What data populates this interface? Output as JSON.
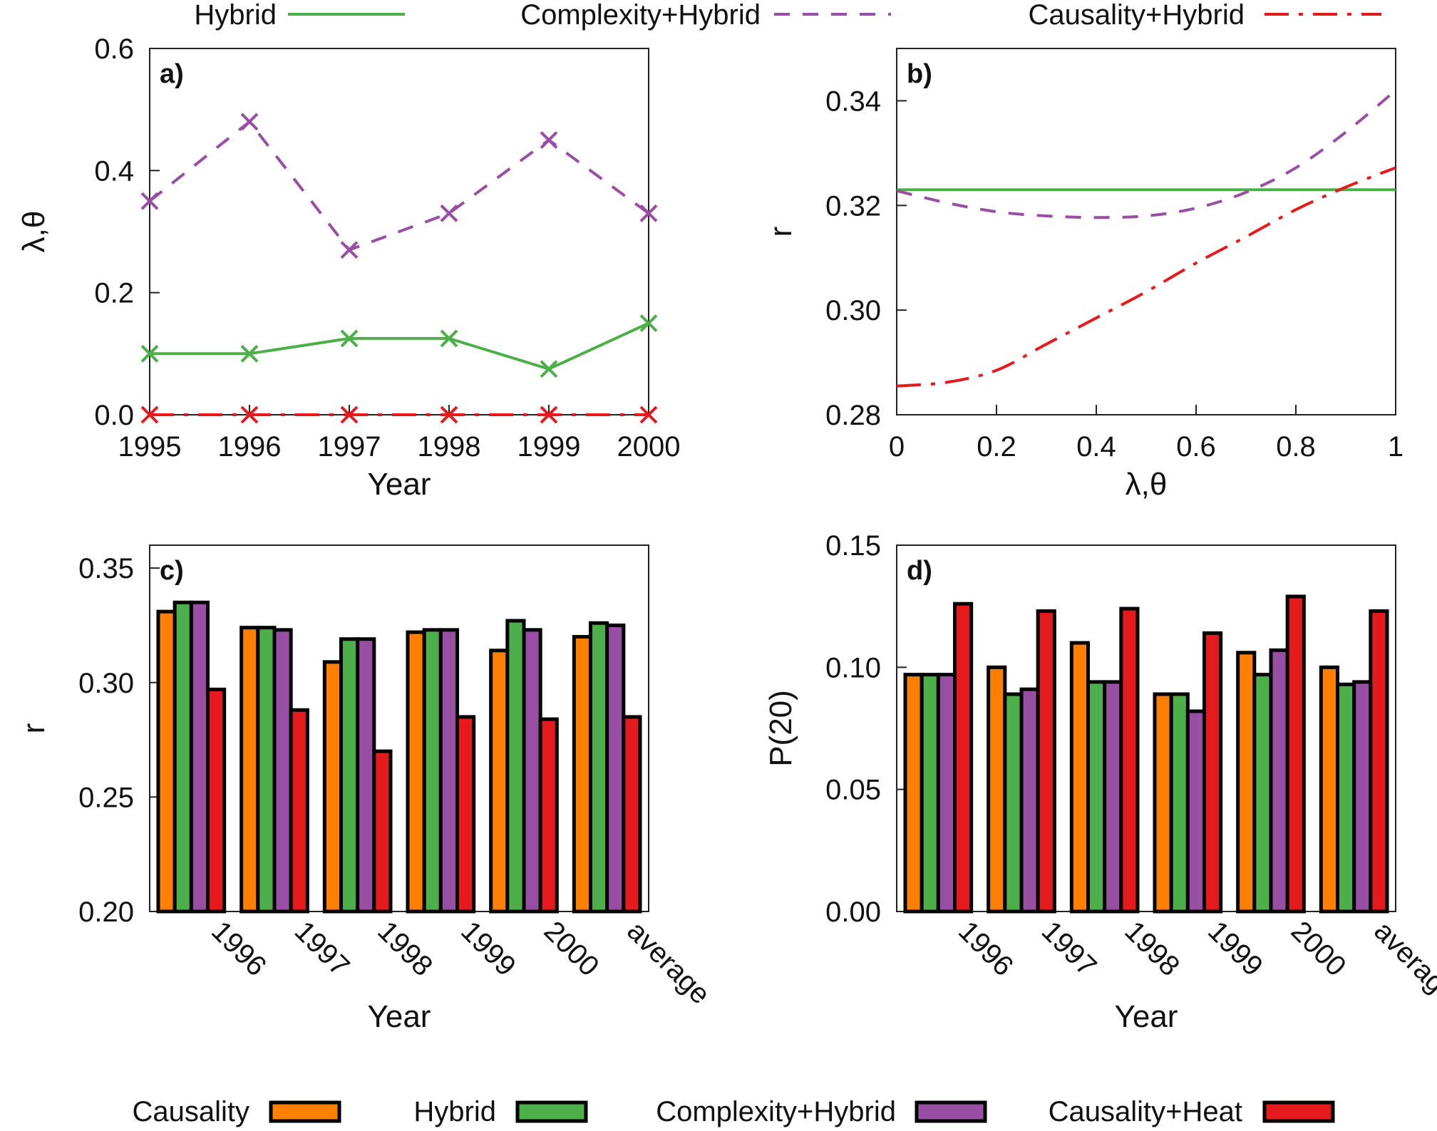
{
  "top_legend": [
    {
      "name": "Hybrid",
      "color": "#4daf4a",
      "dash": "solid"
    },
    {
      "name": "Complexity+Hybrid",
      "color": "#984ea3",
      "dash": "dashed"
    },
    {
      "name": "Causality+Hybrid",
      "color": "#e41a1c",
      "dash": "dashdot"
    }
  ],
  "bottom_legend": [
    {
      "name": "Causality",
      "color": "#ff7f00"
    },
    {
      "name": "Hybrid",
      "color": "#4daf4a"
    },
    {
      "name": "Complexity+Hybrid",
      "color": "#984ea3"
    },
    {
      "name": "Causality+Heat",
      "color": "#e41a1c"
    }
  ],
  "chart_data": [
    {
      "panel": "a)",
      "type": "line",
      "xlabel": "Year",
      "ylabel": "λ,θ",
      "x": [
        1995,
        1996,
        1997,
        1998,
        1999,
        2000
      ],
      "xlim": [
        1995,
        2000
      ],
      "ylim": [
        0,
        0.6
      ],
      "yticks": [
        "0.0",
        "0.2",
        "0.4",
        "0.6"
      ],
      "series": [
        {
          "name": "Hybrid",
          "color": "#4daf4a",
          "dash": "solid",
          "values": [
            0.1,
            0.1,
            0.125,
            0.125,
            0.075,
            0.15
          ]
        },
        {
          "name": "Complexity+Hybrid",
          "color": "#984ea3",
          "dash": "dashed",
          "values": [
            0.35,
            0.48,
            0.27,
            0.33,
            0.45,
            0.33
          ]
        },
        {
          "name": "Causality+Hybrid",
          "color": "#e41a1c",
          "dash": "dashdot",
          "values": [
            0,
            0,
            0,
            0,
            0,
            0
          ]
        }
      ]
    },
    {
      "panel": "b)",
      "type": "line",
      "xlabel": "λ,θ",
      "ylabel": "r",
      "x": [
        0,
        0.1,
        0.2,
        0.3,
        0.4,
        0.5,
        0.6,
        0.7,
        0.8,
        0.9,
        1.0
      ],
      "xlim": [
        0,
        1
      ],
      "ylim": [
        0.28,
        0.35
      ],
      "xticks": [
        "0",
        "0.2",
        "0.4",
        "0.6",
        "0.8",
        "1"
      ],
      "yticks": [
        "0.28",
        "0.30",
        "0.32",
        "0.34"
      ],
      "series": [
        {
          "name": "Hybrid",
          "color": "#4daf4a",
          "dash": "solid",
          "values": [
            0.323,
            0.323,
            0.323,
            0.323,
            0.323,
            0.323,
            0.323,
            0.323,
            0.323,
            0.323,
            0.323
          ]
        },
        {
          "name": "Complexity+Hybrid",
          "color": "#984ea3",
          "dash": "dashed",
          "values": [
            0.3228,
            0.3205,
            0.3188,
            0.318,
            0.3177,
            0.318,
            0.3195,
            0.3225,
            0.3272,
            0.334,
            0.342
          ]
        },
        {
          "name": "Causality+Hybrid",
          "color": "#e41a1c",
          "dash": "dashdot",
          "values": [
            0.2855,
            0.2862,
            0.2885,
            0.2935,
            0.2985,
            0.3035,
            0.309,
            0.314,
            0.3192,
            0.3235,
            0.3272
          ]
        }
      ]
    },
    {
      "panel": "c)",
      "type": "bar",
      "xlabel": "Year",
      "ylabel": "r",
      "categories": [
        "1996",
        "1997",
        "1998",
        "1999",
        "2000",
        "average"
      ],
      "ylim": [
        0.2,
        0.36
      ],
      "yticks": [
        "0.20",
        "0.25",
        "0.30",
        "0.35"
      ],
      "series": [
        {
          "name": "Causality",
          "color": "#ff7f00",
          "values": [
            0.331,
            0.324,
            0.309,
            0.322,
            0.314,
            0.32
          ]
        },
        {
          "name": "Hybrid",
          "color": "#4daf4a",
          "values": [
            0.335,
            0.324,
            0.319,
            0.323,
            0.327,
            0.326
          ]
        },
        {
          "name": "Complexity+Hybrid",
          "color": "#984ea3",
          "values": [
            0.335,
            0.323,
            0.319,
            0.323,
            0.323,
            0.325
          ]
        },
        {
          "name": "Causality+Heat",
          "color": "#e41a1c",
          "values": [
            0.297,
            0.288,
            0.27,
            0.285,
            0.284,
            0.285
          ]
        }
      ]
    },
    {
      "panel": "d)",
      "type": "bar",
      "xlabel": "Year",
      "ylabel": "P(20)",
      "categories": [
        "1996",
        "1997",
        "1998",
        "1999",
        "2000",
        "average"
      ],
      "ylim": [
        0,
        0.15
      ],
      "yticks": [
        "0.00",
        "0.05",
        "0.10",
        "0.15"
      ],
      "series": [
        {
          "name": "Causality",
          "color": "#ff7f00",
          "values": [
            0.097,
            0.1,
            0.11,
            0.089,
            0.106,
            0.1
          ]
        },
        {
          "name": "Hybrid",
          "color": "#4daf4a",
          "values": [
            0.097,
            0.089,
            0.094,
            0.089,
            0.097,
            0.093
          ]
        },
        {
          "name": "Complexity+Hybrid",
          "color": "#984ea3",
          "values": [
            0.097,
            0.091,
            0.094,
            0.082,
            0.107,
            0.094
          ]
        },
        {
          "name": "Causality+Heat",
          "color": "#e41a1c",
          "values": [
            0.126,
            0.123,
            0.124,
            0.114,
            0.129,
            0.123
          ]
        }
      ]
    }
  ]
}
